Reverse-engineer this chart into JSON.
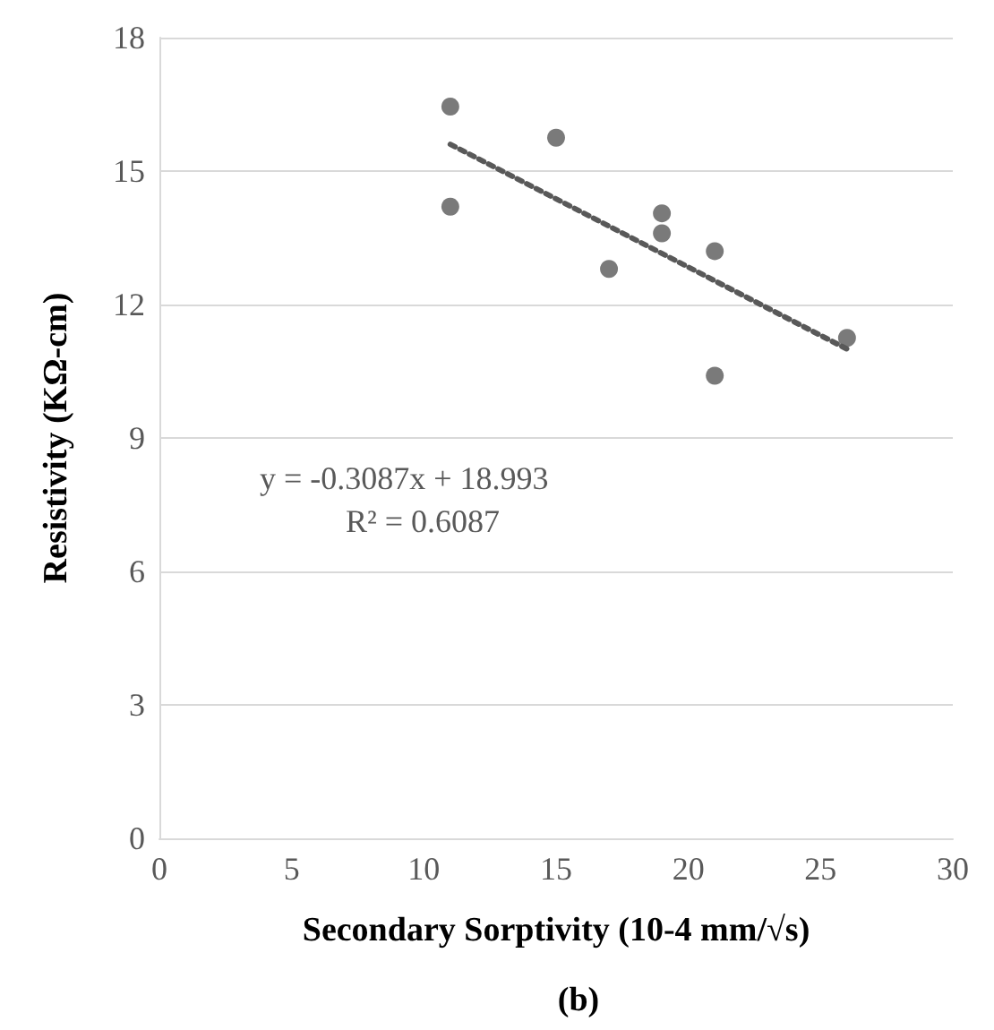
{
  "chart_data": {
    "type": "scatter",
    "title": "(b)",
    "xlabel": "Secondary Sorptivity (10-4 mm/√s)",
    "ylabel": "Resistivity (KΩ-cm)",
    "x": [
      11,
      11,
      15,
      17,
      19,
      19,
      21,
      21,
      26
    ],
    "series": [
      {
        "color": "#595959",
        "values": [
          16.45,
          14.2,
          15.75,
          12.8,
          14.05,
          13.6,
          13.2,
          10.4,
          11.25
        ],
        "marker": "circle"
      },
      {
        "type": "line",
        "color": "#595959",
        "x": [
          11,
          26
        ],
        "values": [
          15.6,
          11.0
        ],
        "line_style": "dotted",
        "marker": "none"
      }
    ],
    "xlim": [
      0,
      30
    ],
    "xticks": [
      0,
      5,
      10,
      15,
      20,
      25,
      30
    ],
    "ylim": [
      0,
      18
    ],
    "yticks": [
      0,
      3,
      6,
      9,
      12,
      15,
      18
    ],
    "grid": "y",
    "annotations": [
      "y = -0.3087x + 18.993",
      "R² = 0.6087"
    ]
  }
}
